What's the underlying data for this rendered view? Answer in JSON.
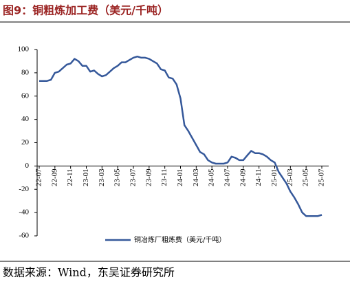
{
  "chart_data": {
    "type": "line",
    "title": "图9：铜粗炼加工费（美元/千吨）",
    "source": "数据来源：Wind，东吴证券研究所",
    "categories": [
      "22-07",
      null,
      null,
      null,
      "22-09",
      null,
      null,
      null,
      "22-11",
      null,
      null,
      null,
      "23-01",
      null,
      null,
      null,
      "23-03",
      null,
      null,
      null,
      "23-05",
      null,
      null,
      null,
      "23-07",
      null,
      null,
      null,
      "23-09",
      null,
      null,
      null,
      "23-11",
      null,
      null,
      null,
      "24-01",
      null,
      null,
      null,
      "24-03",
      null,
      null,
      null,
      "24-05",
      null,
      null,
      null,
      "24-07",
      null,
      null,
      null,
      "24-09",
      null,
      null,
      null,
      "24-11",
      null,
      null,
      null,
      "25-01",
      null,
      null,
      null,
      "25-03",
      null,
      null,
      null,
      "25-05",
      null,
      null,
      null,
      "25-07"
    ],
    "series": [
      {
        "name": "铜冶炼厂粗炼费（美元/千吨）",
        "color": "#35589a",
        "values": [
          73,
          73,
          73,
          74,
          80,
          81,
          84,
          87,
          88,
          92,
          90,
          86,
          86,
          81,
          82,
          79,
          77,
          78,
          81,
          84,
          86,
          89,
          89,
          91,
          93,
          94,
          93,
          93,
          92,
          90,
          88,
          83,
          82,
          76,
          75,
          70,
          58,
          35,
          30,
          24,
          18,
          12,
          10,
          5,
          3,
          2,
          2,
          2,
          3,
          8,
          7,
          5,
          5,
          9,
          13,
          11,
          11,
          10,
          8,
          5,
          3,
          -5,
          -10,
          -15,
          -22,
          -27,
          -33,
          -40,
          -43,
          -43,
          -43,
          -43,
          -42
        ]
      }
    ],
    "ylim": [
      -60,
      100
    ],
    "yticks": [
      -60,
      -40,
      -20,
      0,
      20,
      40,
      60,
      80,
      100
    ]
  }
}
